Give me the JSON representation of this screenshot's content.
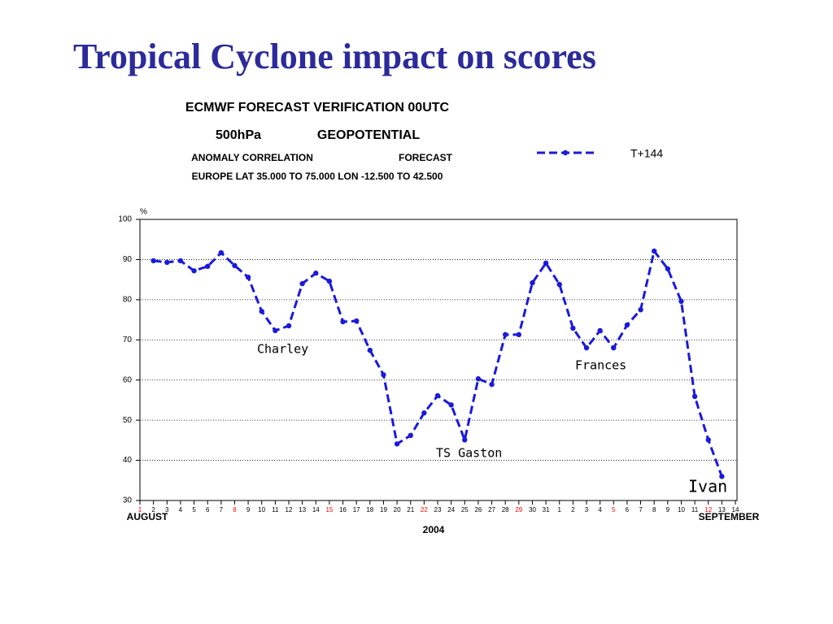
{
  "title": "Tropical Cyclone impact on scores",
  "chart_data": {
    "type": "line",
    "header": [
      "ECMWF  FORECAST  VERIFICATION  00UTC",
      "500hPa",
      "GEOPOTENTIAL",
      "ANOMALY CORRELATION",
      "FORECAST",
      "EUROPE    LAT  35.000 TO  75.000  LON  -12.500 TO   42.500"
    ],
    "y_unit": "%",
    "month_labels": [
      "AUGUST",
      "SEPTEMBER"
    ],
    "x_label": "2004",
    "categories": [
      "1",
      "2",
      "3",
      "4",
      "5",
      "6",
      "7",
      "8",
      "9",
      "10",
      "11",
      "12",
      "13",
      "14",
      "15",
      "16",
      "17",
      "18",
      "19",
      "20",
      "21",
      "22",
      "23",
      "24",
      "25",
      "26",
      "27",
      "28",
      "29",
      "30",
      "31",
      "1",
      "2",
      "3",
      "4",
      "5",
      "6",
      "7",
      "8",
      "9",
      "10",
      "11",
      "12",
      "13",
      "14"
    ],
    "highlighted_categories": [
      0,
      7,
      14,
      21,
      28,
      35,
      42
    ],
    "highlight_color": "#ff0000",
    "series": [
      {
        "name": "T+144",
        "color": "#1a1adc",
        "dashed": true,
        "values": [
          null,
          89.7,
          89.3,
          89.7,
          87.2,
          88.3,
          91.7,
          88.5,
          85.6,
          77.1,
          72.3,
          73.5,
          84.0,
          86.6,
          84.6,
          74.5,
          74.7,
          67.4,
          61.3,
          44.1,
          46.2,
          51.8,
          56.1,
          53.8,
          45.1,
          60.3,
          58.9,
          71.3,
          71.3,
          84.2,
          89.1,
          83.8,
          72.9,
          68.0,
          72.3,
          68.0,
          73.7,
          77.5,
          92.1,
          87.7,
          79.6,
          55.9,
          45.1,
          36.0,
          null
        ]
      }
    ],
    "annotations": [
      "Charley",
      "TS Gaston",
      "Frances",
      "Ivan"
    ],
    "ylim": [
      30,
      100
    ],
    "yticks": [
      30,
      40,
      50,
      60,
      70,
      80,
      90,
      100
    ],
    "grid": true
  }
}
